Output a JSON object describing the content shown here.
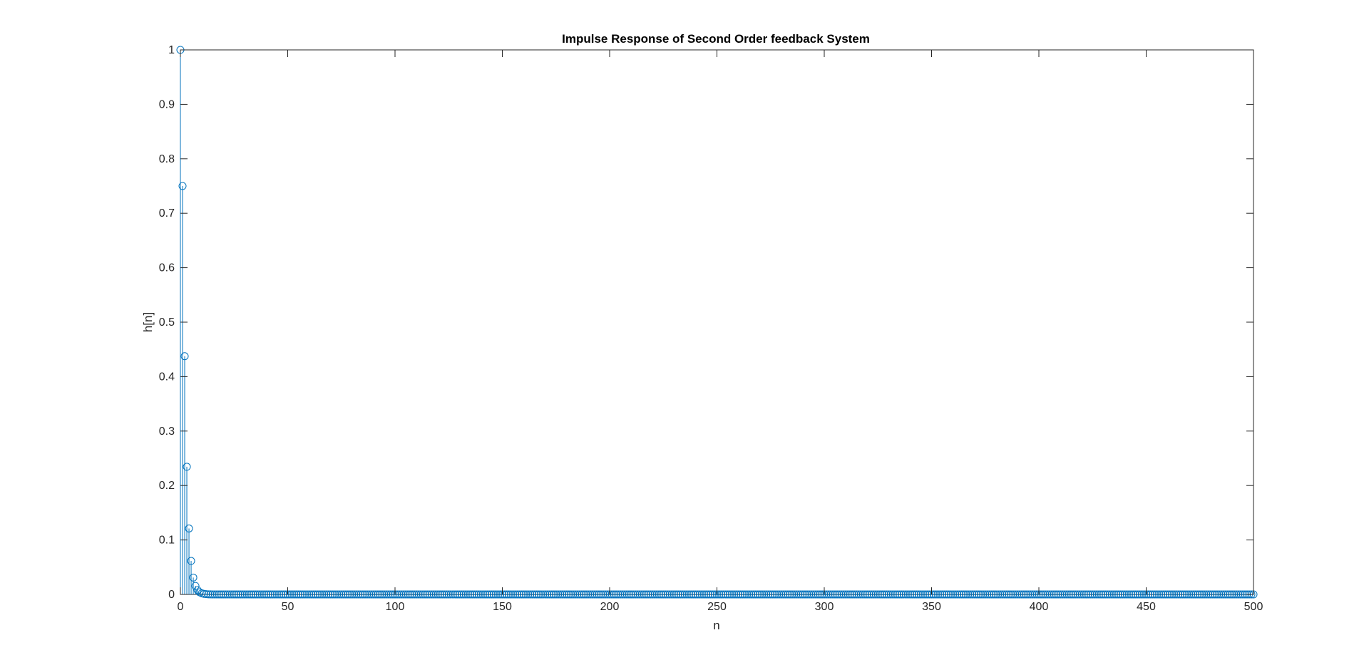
{
  "chart_data": {
    "type": "stem",
    "title": "Impulse Response of Second Order feedback System",
    "xlabel": "n",
    "ylabel": "h[n]",
    "xlim": [
      0,
      500
    ],
    "ylim": [
      0,
      1
    ],
    "xticks": [
      "0",
      "50",
      "100",
      "150",
      "200",
      "250",
      "300",
      "350",
      "400",
      "450",
      "500"
    ],
    "yticks": [
      "0",
      "0.1",
      "0.2",
      "0.3",
      "0.4",
      "0.5",
      "0.6",
      "0.7",
      "0.8",
      "0.9",
      "1"
    ],
    "grid": false,
    "series": [
      {
        "n_range": [
          0,
          500
        ],
        "head_values": [
          1.0,
          0.75,
          0.4375,
          0.2344,
          0.1211,
          0.0615,
          0.031,
          0.0156,
          0.0078,
          0.0039,
          0.002,
          0.001,
          0.0005,
          0.0002,
          0.0001
        ],
        "tail_value": 0,
        "color": "#0072BD"
      }
    ]
  }
}
